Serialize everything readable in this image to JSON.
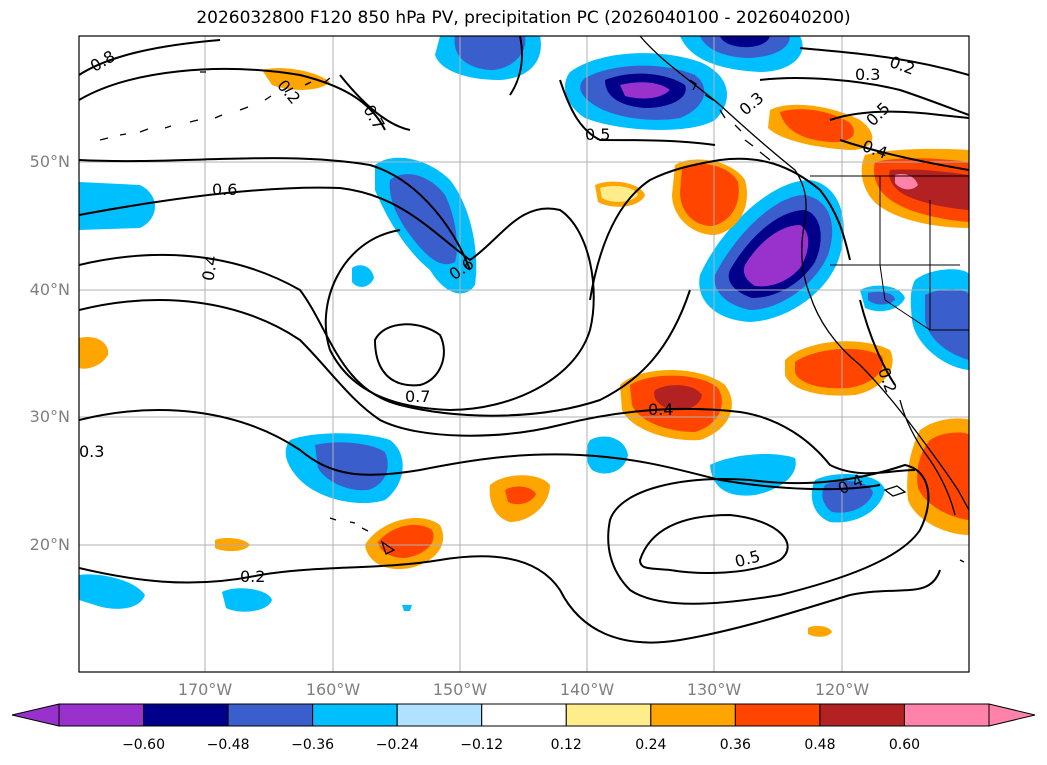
{
  "title": "2026032800 F120 850 hPa PV, precipitation PC (2026040100 - 2026040200)",
  "map": {
    "lat_labels": [
      {
        "lat": 50,
        "label": "50°N"
      },
      {
        "lat": 40,
        "label": "40°N"
      },
      {
        "lat": 30,
        "label": "30°N"
      },
      {
        "lat": 20,
        "label": "20°N"
      }
    ],
    "lon_labels": [
      {
        "lon": -170,
        "label": "170°W"
      },
      {
        "lon": -160,
        "label": "160°W"
      },
      {
        "lon": -150,
        "label": "150°W"
      },
      {
        "lon": -140,
        "label": "140°W"
      },
      {
        "lon": -130,
        "label": "130°W"
      },
      {
        "lon": -120,
        "label": "120°W"
      }
    ],
    "contour_labels": [
      "0.8",
      "0.7",
      "0.6",
      "0.4",
      "0.6",
      "0.7",
      "0.3",
      "0.2",
      "0.5",
      "0.3",
      "0.2",
      "0.3",
      "0.5",
      "0.4",
      "0.4",
      "0.4",
      "0.2",
      "0.5",
      "0.2"
    ]
  },
  "colorbar": {
    "ticks": [
      "−0.60",
      "−0.48",
      "−0.36",
      "−0.24",
      "−0.12",
      "0.12",
      "0.24",
      "0.36",
      "0.48",
      "0.60"
    ],
    "colors": [
      "#9932cc",
      "#00008b",
      "#3a5fcd",
      "#00bfff",
      "#b0e2ff",
      "#ffffff",
      "#ffec8b",
      "#ffa500",
      "#ff4500",
      "#b22222",
      "#ff82ab"
    ]
  }
}
